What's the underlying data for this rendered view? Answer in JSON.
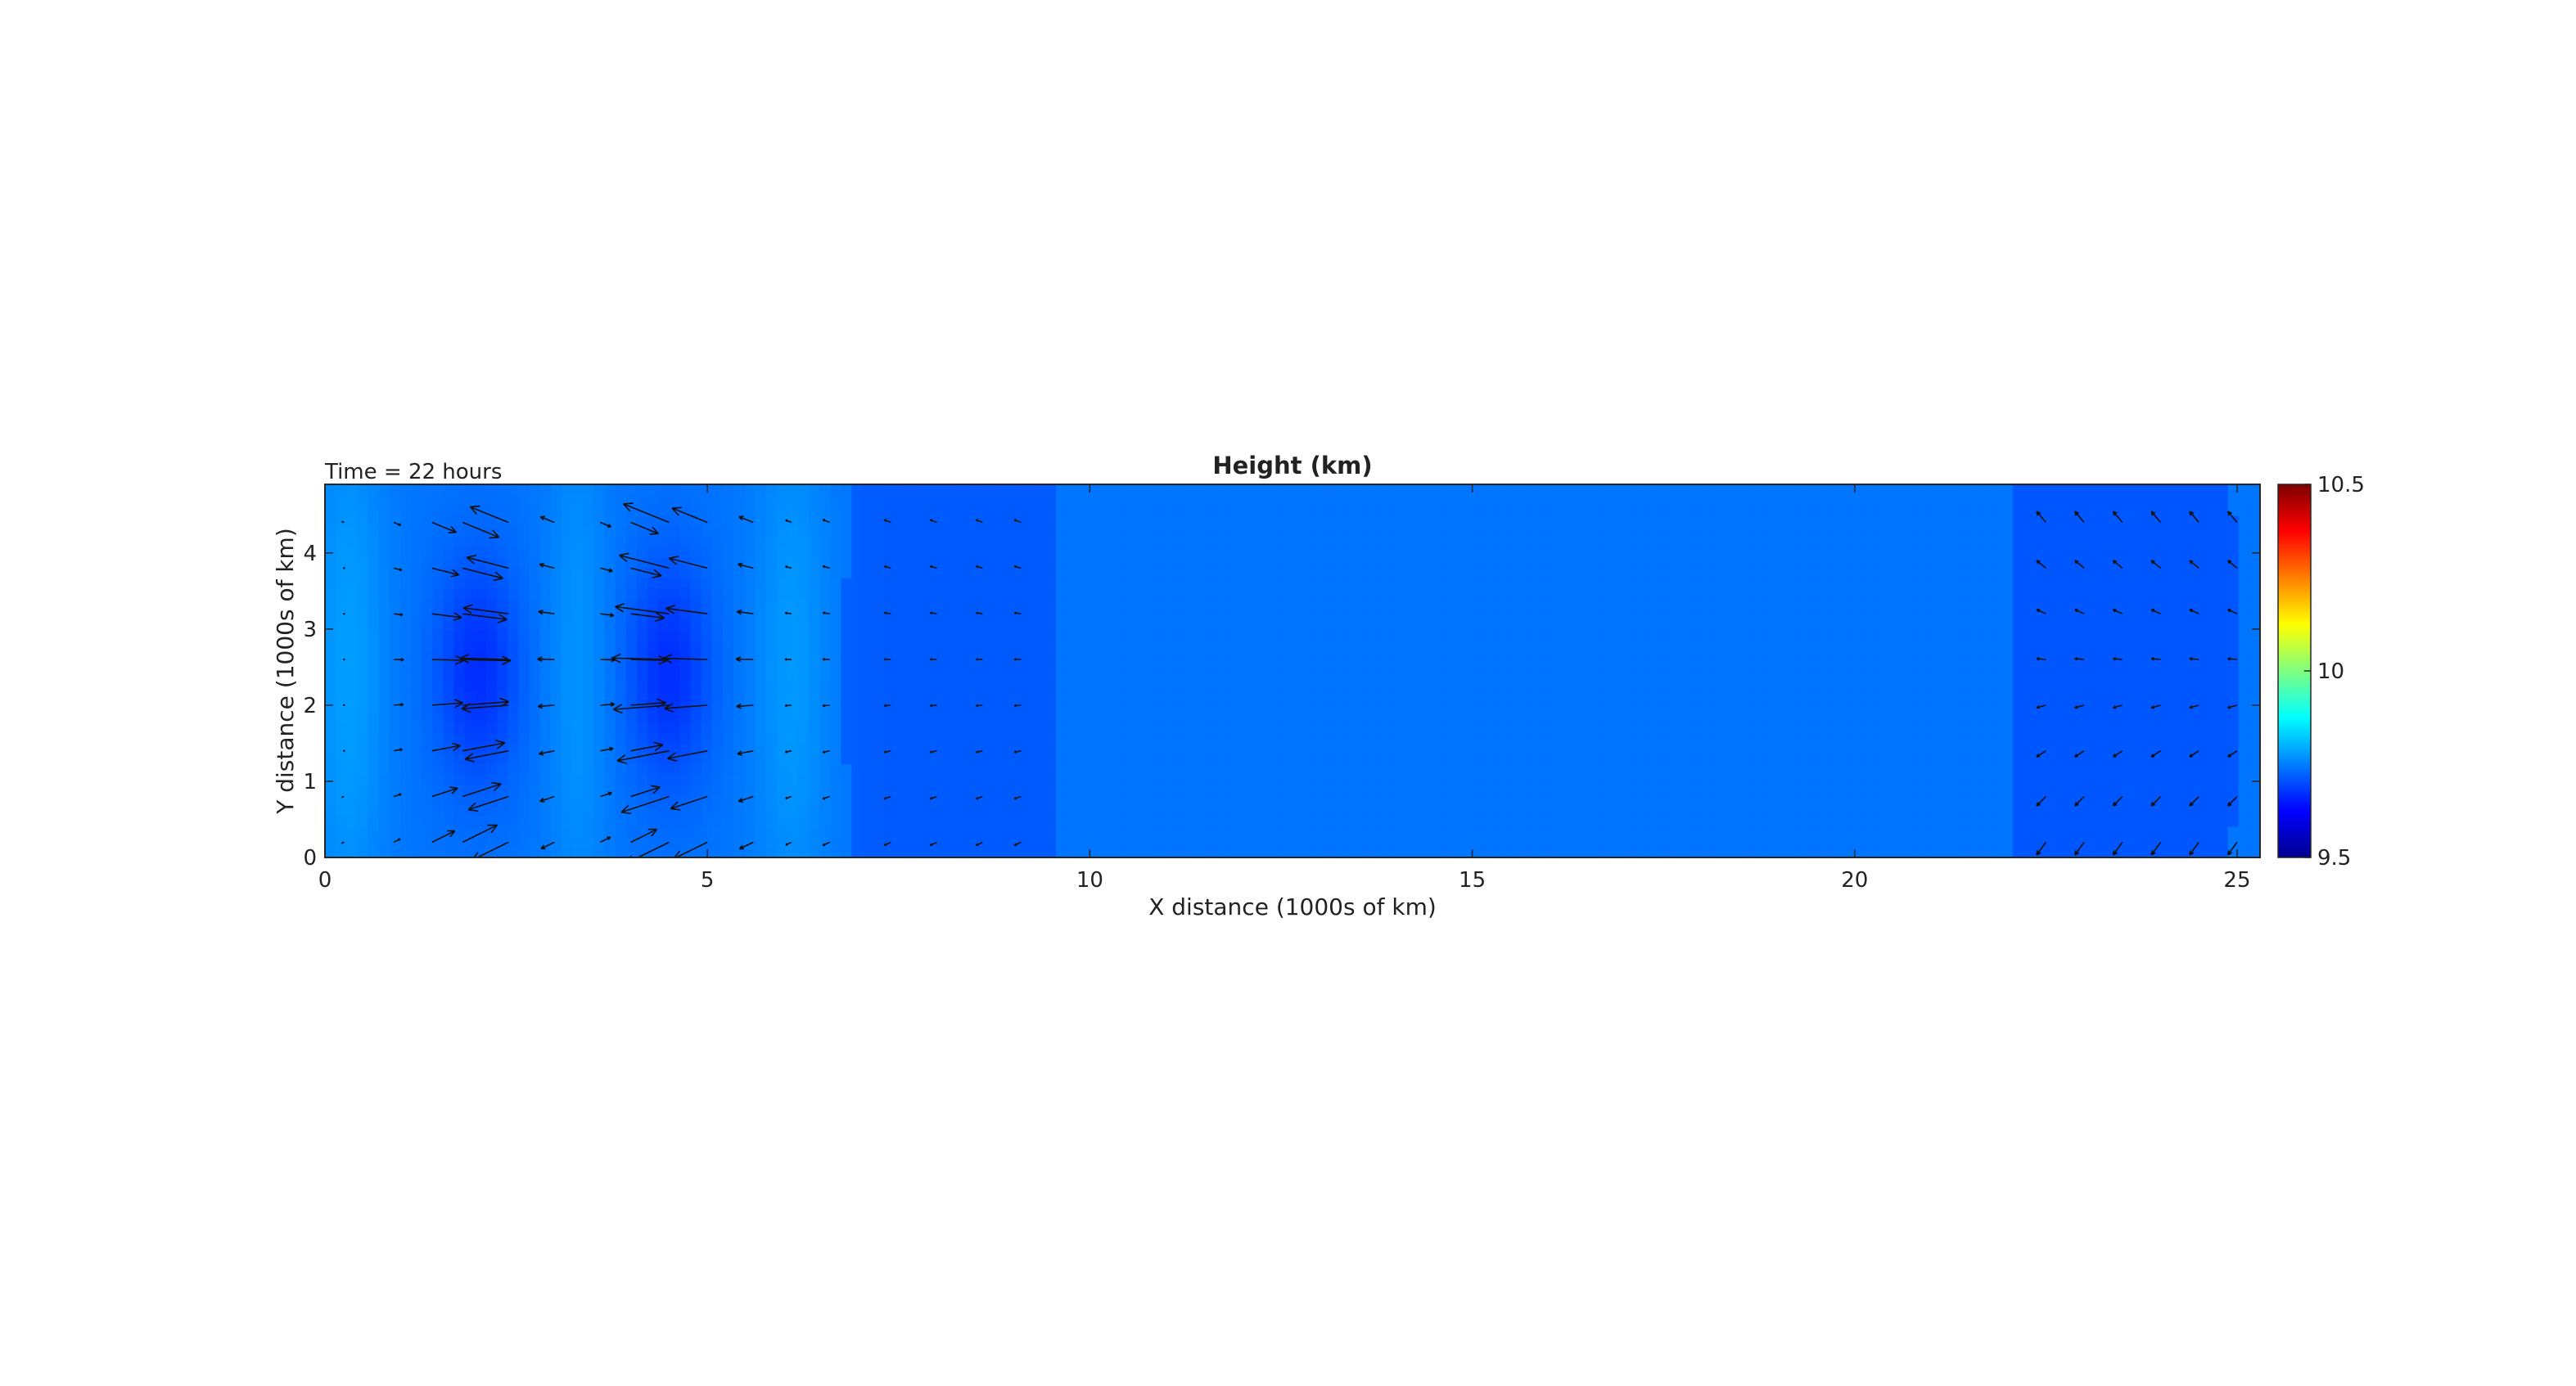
{
  "chart_data": {
    "type": "heatmap",
    "title": "Height (km)",
    "annotation": "Time = 22 hours",
    "xlabel": "X distance (1000s of km)",
    "ylabel": "Y distance (1000s of km)",
    "xlim": [
      0,
      25.3
    ],
    "ylim": [
      0,
      4.9
    ],
    "xticks": [
      0,
      5,
      10,
      15,
      20,
      25
    ],
    "yticks": [
      0,
      1,
      2,
      3,
      4
    ],
    "colorbar": {
      "range": [
        9.5,
        10.5
      ],
      "ticks": [
        9.5,
        10,
        10.5
      ],
      "colormap": "jet",
      "colors": [
        "#00008f",
        "#0000ff",
        "#007fff",
        "#00ffff",
        "#7fff7f",
        "#ffff00",
        "#ff7f00",
        "#ff0000",
        "#7f0000"
      ]
    },
    "field": {
      "description": "surface height in km over the domain",
      "baseline": 9.74,
      "troughs": [
        {
          "x": 2.0,
          "y": 2.45,
          "depth": 0.07,
          "sx": 0.55,
          "sy": 1.5
        },
        {
          "x": 4.5,
          "y": 2.45,
          "depth": 0.07,
          "sx": 0.55,
          "sy": 1.5
        }
      ],
      "ridges": [
        {
          "x": 0.3,
          "y": 2.45,
          "height": 0.04,
          "sx": 0.5
        },
        {
          "x": 3.3,
          "y": 2.45,
          "height": 0.03,
          "sx": 0.4
        },
        {
          "x": 6.1,
          "y": 2.45,
          "height": 0.035,
          "sx": 0.5
        }
      ],
      "dark_bands": [
        {
          "x0": 6.8,
          "x1": 9.6,
          "depth": 0.025
        },
        {
          "x0": 22.0,
          "x1": 25.0,
          "depth": 0.03
        }
      ]
    },
    "quiver": {
      "x": [
        0.25,
        0.9,
        1.4,
        1.8,
        2.4,
        3.0,
        3.6,
        4.0,
        4.5,
        5.0,
        5.6,
        6.1,
        6.6,
        7.4,
        8.0,
        8.6,
        9.1,
        22.5,
        23.0,
        23.5,
        24.0,
        24.5,
        25.0
      ],
      "y": [
        0.2,
        0.8,
        1.4,
        2.0,
        2.6,
        3.2,
        3.8,
        4.4
      ],
      "u_scale_note": "arrows show wind velocity; longest near troughs at x≈1–5"
    }
  }
}
